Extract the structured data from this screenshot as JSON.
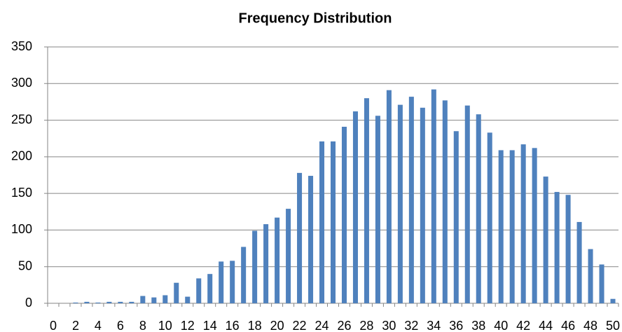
{
  "chart_data": {
    "type": "bar",
    "title": "Frequency Distribution",
    "categories": [
      "0",
      null,
      "2",
      null,
      "4",
      null,
      "6",
      null,
      "8",
      null,
      "10",
      null,
      "12",
      null,
      "14",
      null,
      "16",
      null,
      "18",
      null,
      "20",
      null,
      "22",
      null,
      "24",
      null,
      "26",
      null,
      "28",
      null,
      "30",
      null,
      "32",
      null,
      "34",
      null,
      "36",
      null,
      "38",
      null,
      "40",
      null,
      "42",
      null,
      "44",
      null,
      "46",
      null,
      "48",
      null,
      "50"
    ],
    "values": [
      0,
      0,
      1,
      2,
      1,
      2,
      2,
      2,
      10,
      8,
      11,
      28,
      9,
      34,
      40,
      57,
      58,
      77,
      99,
      108,
      117,
      129,
      178,
      174,
      221,
      221,
      241,
      262,
      280,
      256,
      291,
      271,
      282,
      267,
      292,
      277,
      235,
      270,
      258,
      233,
      209,
      209,
      217,
      212,
      173,
      152,
      148,
      111,
      74,
      53,
      6
    ],
    "color": "#4f81bd",
    "ylim": [
      0,
      350
    ],
    "yticks": [
      0,
      50,
      100,
      150,
      200,
      250,
      300,
      350
    ],
    "grid": true
  }
}
